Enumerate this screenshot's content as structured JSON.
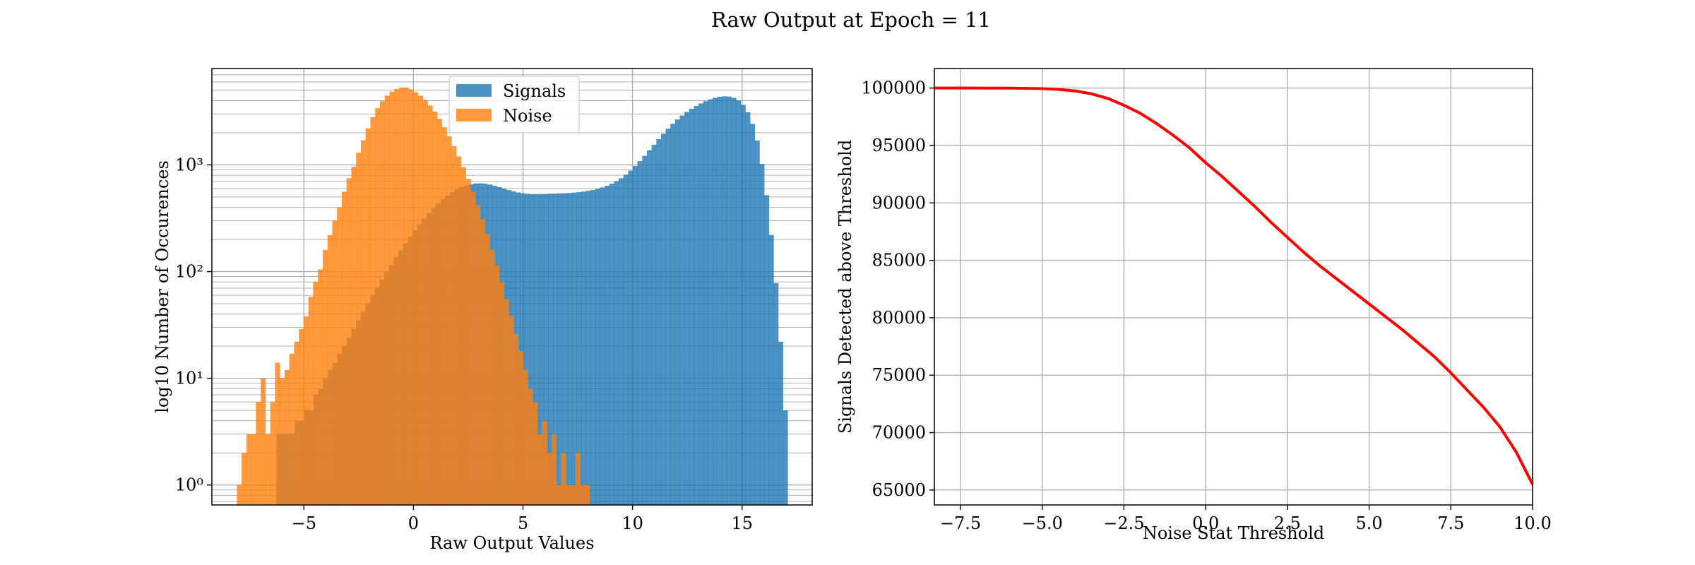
{
  "figure": {
    "title": "Raw Output at Epoch = 11"
  },
  "colors": {
    "signals": "#1f77b4",
    "noise": "#ff7f0e",
    "threshold_line": "#ff0000",
    "grid": "#b0b0b0"
  },
  "chart_data": [
    {
      "type": "bar",
      "subtype": "histogram",
      "yscale": "log",
      "xlabel": "Raw Output Values",
      "ylabel": "log10 Number of Occurences",
      "xlim": [
        -9.2,
        18.2
      ],
      "ylim": [
        0.65,
        8000
      ],
      "xticks": [
        -5,
        0,
        5,
        10,
        15
      ],
      "xtick_labels": [
        "−5",
        "0",
        "5",
        "10",
        "15"
      ],
      "yticks": [
        1,
        10,
        100,
        1000
      ],
      "ytick_labels": [
        "10⁰",
        "10¹",
        "10²",
        "10³"
      ],
      "grid": true,
      "legend": {
        "placement": "upper center",
        "entries": [
          "Signals",
          "Noise"
        ]
      },
      "series": [
        {
          "name": "Signals",
          "bin_start": -6.26,
          "bin_end": 17.08,
          "alpha": 0.8,
          "counts": [
            3,
            3,
            3,
            3,
            4,
            4,
            5,
            5,
            7,
            8,
            10,
            12,
            14,
            17,
            20,
            24,
            29,
            35,
            42,
            50,
            60,
            71,
            84,
            99,
            116,
            136,
            159,
            184,
            212,
            243,
            277,
            314,
            353,
            394,
            435,
            477,
            517,
            555,
            589,
            619,
            642,
            659,
            669,
            671,
            666,
            654,
            638,
            619,
            599,
            581,
            565,
            552,
            542,
            536,
            533,
            533,
            534,
            535,
            537,
            539,
            541,
            543,
            546,
            550,
            555,
            562,
            571,
            582,
            596,
            614,
            637,
            666,
            703,
            750,
            810,
            884,
            975,
            1085,
            1216,
            1370,
            1545,
            1741,
            1955,
            2183,
            2420,
            2660,
            2898,
            3130,
            3353,
            3565,
            3765,
            3950,
            4115,
            4252,
            4350,
            4395,
            4370,
            4250,
            4020,
            3650,
            3110,
            2420,
            1690,
            1020,
            520,
            220,
            78,
            22,
            5
          ]
        },
        {
          "name": "Noise",
          "bin_start": -8.06,
          "bin_end": 8.05,
          "alpha": 0.8,
          "counts": [
            1,
            2,
            3,
            3,
            6,
            10,
            3,
            6,
            14,
            10,
            12,
            17,
            22,
            29,
            38,
            58,
            80,
            105,
            160,
            220,
            300,
            400,
            560,
            750,
            960,
            1300,
            1700,
            2200,
            2800,
            3400,
            3950,
            4450,
            4850,
            5150,
            5300,
            5300,
            5100,
            4800,
            4450,
            4050,
            3600,
            3150,
            2700,
            2250,
            1850,
            1500,
            1200,
            950,
            740,
            560,
            420,
            310,
            225,
            160,
            115,
            80,
            55,
            38,
            26,
            18,
            12,
            8,
            6,
            3,
            4,
            2,
            3,
            1,
            2,
            1,
            1,
            2,
            1,
            1
          ]
        }
      ]
    },
    {
      "type": "line",
      "xlabel": "Noise Stat Threshold",
      "ylabel": "Signals Detected above Threshold",
      "xlim": [
        -8.3,
        10.0
      ],
      "ylim": [
        63700,
        101700
      ],
      "xticks": [
        -7.5,
        -5.0,
        -2.5,
        0.0,
        2.5,
        5.0,
        7.5,
        10.0
      ],
      "xtick_labels": [
        "−7.5",
        "−5.0",
        "−2.5",
        "0.0",
        "2.5",
        "5.0",
        "7.5",
        "10.0"
      ],
      "yticks": [
        65000,
        70000,
        75000,
        80000,
        85000,
        90000,
        95000,
        100000
      ],
      "ytick_labels": [
        "65000",
        "70000",
        "75000",
        "80000",
        "85000",
        "90000",
        "95000",
        "100000"
      ],
      "grid": true,
      "series": [
        {
          "x": [
            -8.3,
            -7.0,
            -6.0,
            -5.0,
            -4.5,
            -4.0,
            -3.5,
            -3.0,
            -2.5,
            -2.0,
            -1.5,
            -1.0,
            -0.5,
            0.0,
            0.5,
            1.0,
            1.5,
            2.0,
            2.5,
            3.0,
            3.5,
            4.0,
            4.5,
            5.0,
            5.5,
            6.0,
            6.5,
            7.0,
            7.5,
            8.0,
            8.5,
            9.0,
            9.5,
            10.0
          ],
          "y": [
            100000,
            100000,
            99990,
            99950,
            99880,
            99750,
            99500,
            99100,
            98500,
            97800,
            96900,
            95900,
            94800,
            93500,
            92300,
            91000,
            89700,
            88300,
            87000,
            85700,
            84500,
            83400,
            82300,
            81200,
            80100,
            79000,
            77800,
            76600,
            75200,
            73700,
            72200,
            70500,
            68300,
            65500
          ]
        }
      ]
    }
  ]
}
